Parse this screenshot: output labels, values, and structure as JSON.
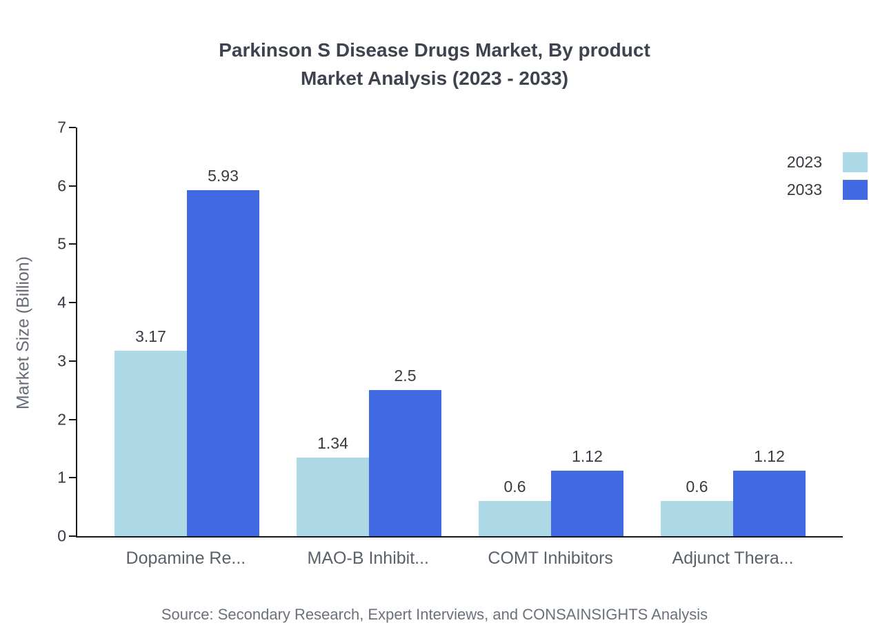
{
  "title": {
    "line1": "Parkinson S Disease Drugs Market, By product",
    "line2": "Market Analysis (2023 - 2033)"
  },
  "source": "Source: Secondary Research, Expert Interviews, and CONSAINSIGHTS Analysis",
  "chart_data": {
    "type": "bar",
    "title": "Parkinson S Disease Drugs Market, By product Market Analysis (2023 - 2033)",
    "categories": [
      "Dopamine Re...",
      "MAO-B Inhibit...",
      "COMT Inhibitors",
      "Adjunct Thera..."
    ],
    "series": [
      {
        "name": "2023",
        "color": "#ADD8E6",
        "values": [
          3.17,
          1.34,
          0.6,
          0.6
        ]
      },
      {
        "name": "2033",
        "color": "#4169E1",
        "values": [
          5.93,
          2.5,
          1.12,
          1.12
        ]
      }
    ],
    "xlabel": "",
    "ylabel": "Market Size (Billion)",
    "ylim": [
      0,
      7
    ],
    "yticks": [
      0,
      1,
      2,
      3,
      4,
      5,
      6,
      7
    ],
    "grid": false,
    "legend_position": "top-right",
    "axis_color": "#15181c"
  }
}
